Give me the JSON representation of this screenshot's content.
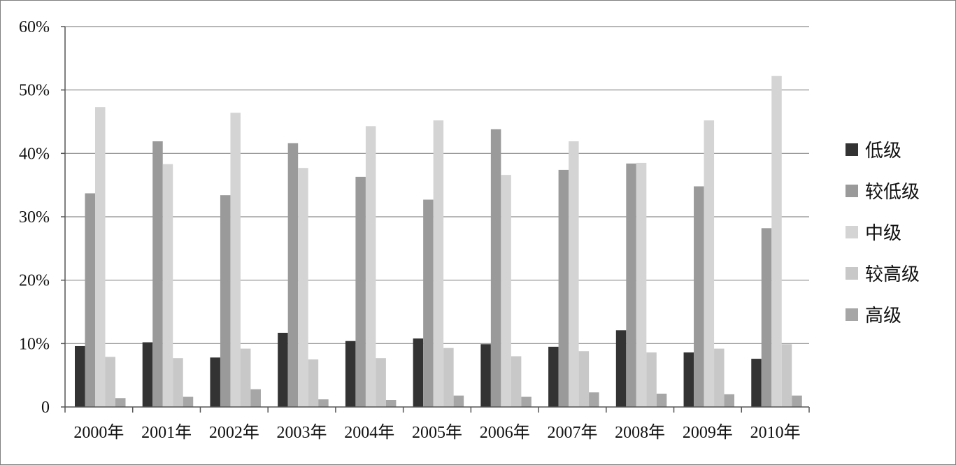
{
  "chart_data": {
    "type": "bar",
    "title": "",
    "xlabel": "",
    "ylabel": "",
    "ylim": [
      0,
      60
    ],
    "y_ticks": [
      0,
      10,
      20,
      30,
      40,
      50,
      60
    ],
    "y_tick_labels": [
      "0",
      "10%",
      "20%",
      "30%",
      "40%",
      "50%",
      "60%"
    ],
    "grid": "horizontal",
    "legend_position": "right",
    "categories": [
      "2000年",
      "2001年",
      "2002年",
      "2003年",
      "2004年",
      "2005年",
      "2006年",
      "2007年",
      "2008年",
      "2009年",
      "2010年"
    ],
    "series": [
      {
        "name": "低级",
        "color": "#333333",
        "values": [
          9.6,
          10.2,
          7.8,
          11.7,
          10.4,
          10.8,
          9.9,
          9.5,
          12.1,
          8.6,
          7.6
        ]
      },
      {
        "name": "较低级",
        "color": "#9a9a9a",
        "values": [
          33.7,
          41.9,
          33.4,
          41.6,
          36.3,
          32.7,
          43.8,
          37.4,
          38.4,
          34.8,
          28.2
        ]
      },
      {
        "name": "中级",
        "color": "#d4d4d4",
        "values": [
          47.3,
          38.3,
          46.4,
          37.7,
          44.3,
          45.2,
          36.6,
          41.9,
          38.5,
          45.2,
          52.2
        ]
      },
      {
        "name": "较高级",
        "color": "#c8c8c8",
        "values": [
          7.9,
          7.7,
          9.2,
          7.5,
          7.7,
          9.3,
          8.0,
          8.8,
          8.6,
          9.2,
          9.9
        ]
      },
      {
        "name": "高级",
        "color": "#a6a6a6",
        "values": [
          1.4,
          1.6,
          2.8,
          1.2,
          1.1,
          1.8,
          1.6,
          2.3,
          2.1,
          2.0,
          1.8
        ]
      }
    ]
  }
}
